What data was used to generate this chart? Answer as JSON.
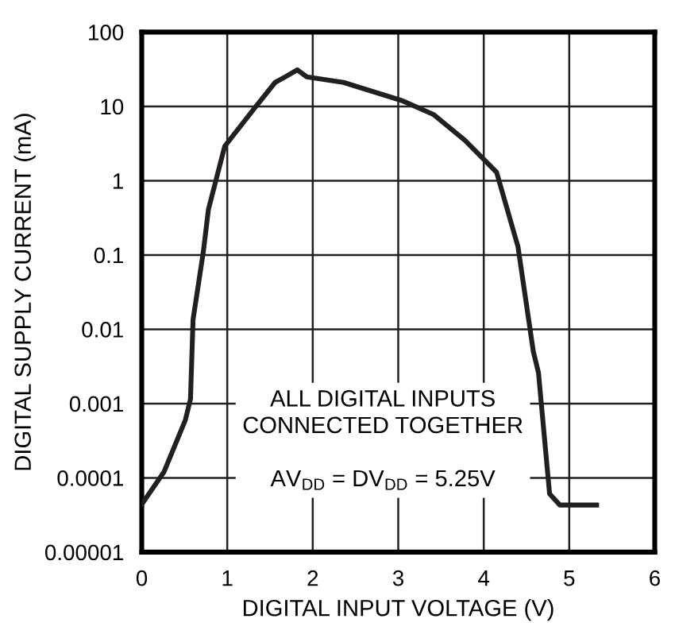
{
  "chart_data": {
    "type": "line",
    "xlabel": "DIGITAL INPUT VOLTAGE (V)",
    "ylabel": "DIGITAL SUPPLY CURRENT (mA)",
    "log": "y",
    "grid": true,
    "marker": "none",
    "line_style": "solid",
    "xlim": [
      0,
      6
    ],
    "xticks": [
      0,
      1,
      2,
      3,
      4,
      5,
      6
    ],
    "ylim": [
      1e-05,
      100
    ],
    "yticks": [
      {
        "value": 1e-05,
        "label": "0.00001"
      },
      0.0001,
      0.001,
      0.01,
      0.1,
      1,
      10,
      100
    ],
    "annotations": [
      "ALL DIGITAL INPUTS\nCONNECTED TOGETHER\n\nAV$_{DD}$ = DV$_{DD}$ = 5.25V"
    ],
    "series": [
      {
        "color": "#231f20",
        "x": [
          0,
          0.26,
          0.51,
          0.57,
          0.6,
          0.72,
          0.78,
          0.97,
          1.31,
          1.56,
          1.68,
          1.82,
          1.93,
          2.36,
          3.04,
          3.41,
          3.78,
          4.15,
          4.4,
          4.58,
          4.64,
          4.77,
          4.89,
          5.32
        ],
        "values": [
          4.4e-05,
          0.00012,
          0.0006,
          0.00115,
          0.0135,
          0.11,
          0.41,
          2.9,
          9.2,
          21,
          25,
          31,
          25,
          21,
          12,
          7.8,
          3.5,
          1.3,
          0.13,
          0.005,
          0.0026,
          6.1e-05,
          4.3e-05,
          4.3e-05
        ]
      }
    ]
  }
}
